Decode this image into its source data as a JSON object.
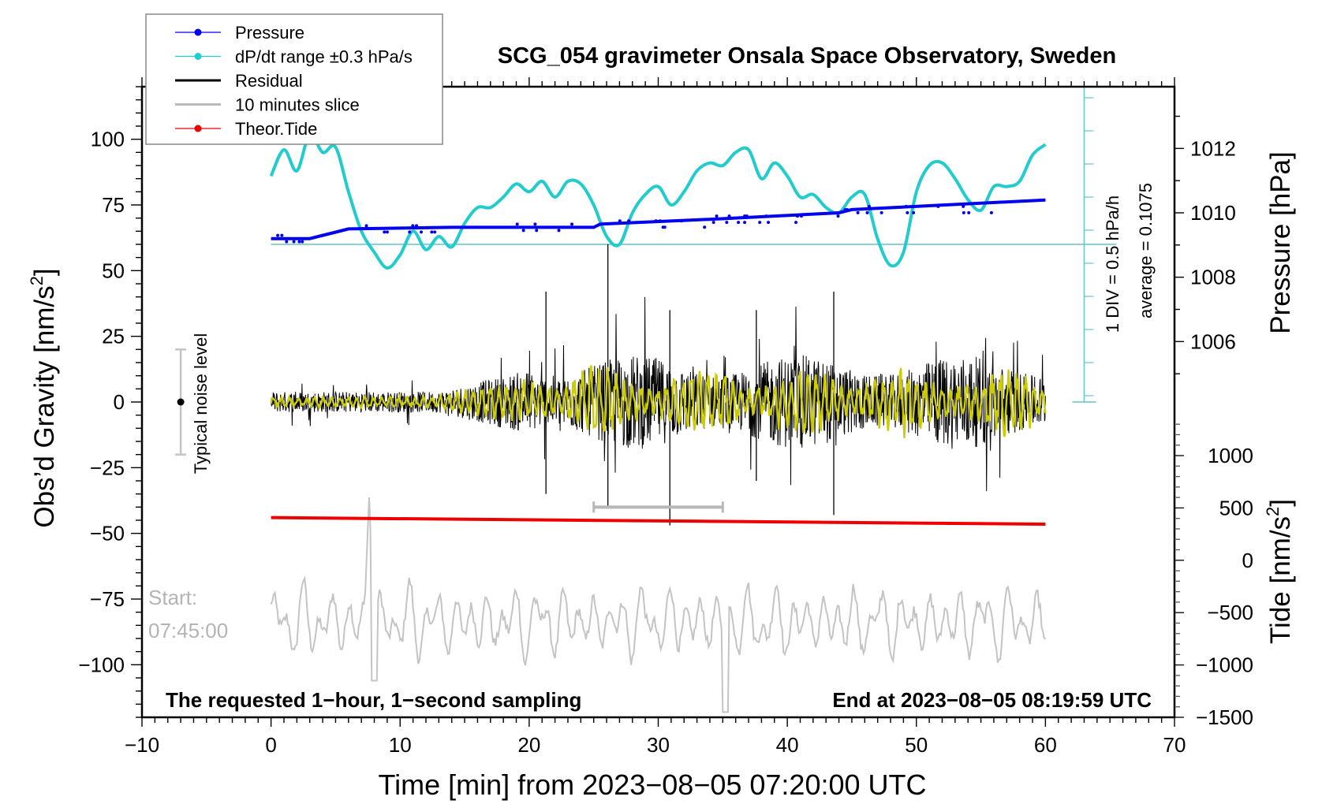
{
  "chart_data": {
    "type": "line",
    "title": "SCG_054 gravimeter Onsala Space Observatory, Sweden",
    "xlabel": "Time [min] from 2023−08−05 07:20:00 UTC",
    "ylabel_left": "Obs’d Gravity [nm/s²]",
    "ylabel_left_main": "Obs’d Gravity [nm/s",
    "ylabel_left_sup": "2",
    "ylabel_left_end": "]",
    "ylabel_right_top": "Pressure [hPa]",
    "ylabel_right_bottom_main": "Tide [nm/s",
    "ylabel_right_bottom_sup": "2",
    "ylabel_right_bottom_end": "]",
    "xlim": [
      -10,
      70
    ],
    "ylim_left": [
      -120,
      120
    ],
    "xticks": [
      "−10",
      "0",
      "10",
      "20",
      "30",
      "40",
      "50",
      "60",
      "70"
    ],
    "xtick_values": [
      -10,
      0,
      10,
      20,
      30,
      40,
      50,
      60,
      70
    ],
    "yticks_left": [
      "100",
      "75",
      "50",
      "25",
      "0",
      "−25",
      "−50",
      "−75",
      "−100"
    ],
    "ytick_values_left": [
      100,
      75,
      50,
      25,
      0,
      -25,
      -50,
      -75,
      -100
    ],
    "yticks_pressure": [
      "1012",
      "1010",
      "1008",
      "1006"
    ],
    "ytick_values_pressure": [
      1012,
      1010,
      1008,
      1006
    ],
    "yticks_tide": [
      "1000",
      "500",
      "0",
      "−500",
      "−1000",
      "−1500"
    ],
    "ytick_values_tide": [
      1000,
      500,
      0,
      -500,
      -1000,
      -1500
    ],
    "legend": {
      "placement": "top-left",
      "entries": [
        {
          "label": "Pressure",
          "color": "#0000ee",
          "marker": true
        },
        {
          "label": "dP/dt range ±0.3 hPa/s",
          "color": "#22cccc",
          "marker": true
        },
        {
          "label": "Residual",
          "color": "#000000",
          "marker": false
        },
        {
          "label": "10 minutes slice",
          "color": "#bbbbbb",
          "marker": false
        },
        {
          "label": "Theor.Tide",
          "color": "#ee0000",
          "marker": true
        }
      ]
    },
    "annotations": {
      "div_label": "1 DIV = 0.5 hPa/h",
      "average_label": "average = 0.1075",
      "noise_label": "Typical noise level",
      "start_label_1": "Start:",
      "start_label_2": "07:45:00",
      "bottom_left_note": "The requested 1−hour, 1−second sampling",
      "bottom_right_note": "End at 2023−08−05 08:19:59 UTC"
    },
    "noise_bar": {
      "x": -7,
      "center": 0,
      "low": -20,
      "high": 20
    },
    "slice_marker": {
      "x_start": 25,
      "x_end": 35,
      "y": -40
    },
    "pressure_series": {
      "name": "Pressure",
      "color": "#0000ee",
      "x": [
        0,
        3,
        5.5,
        6,
        14,
        25,
        25.5,
        34,
        44,
        45,
        60
      ],
      "hpa": [
        1009.2,
        1009.2,
        1009.45,
        1009.5,
        1009.55,
        1009.55,
        1009.65,
        1009.8,
        1010.0,
        1010.1,
        1010.4
      ]
    },
    "dpdt_series": {
      "name": "dP/dt",
      "color": "#22cccc",
      "x": [
        0,
        1,
        2,
        3,
        4,
        5,
        6,
        7,
        8,
        9,
        10,
        11,
        12,
        13,
        14,
        15,
        16,
        17,
        18,
        19,
        20,
        21,
        22,
        23,
        24,
        25,
        26,
        27,
        28,
        29,
        30,
        31,
        32,
        33,
        34,
        35,
        36,
        37,
        38,
        39,
        40,
        41,
        42,
        43,
        44,
        45,
        46,
        47,
        48,
        49,
        50,
        51,
        52,
        53,
        54,
        55,
        56,
        57,
        58,
        59,
        60
      ],
      "y": [
        86,
        96,
        88,
        102,
        95,
        97,
        80,
        65,
        57,
        51,
        56,
        65,
        58,
        63,
        59,
        68,
        74,
        74,
        78,
        83,
        80,
        84,
        78,
        84,
        83,
        75,
        63,
        60,
        72,
        79,
        82,
        75,
        80,
        88,
        91,
        90,
        95,
        96,
        85,
        91,
        86,
        78,
        79,
        74,
        72,
        78,
        79,
        62,
        52,
        57,
        80,
        90,
        91,
        85,
        77,
        73,
        82,
        82,
        84,
        94,
        98
      ]
    },
    "tide_series": {
      "name": "Theor.Tide",
      "color": "#ee0000",
      "x": [
        0,
        60
      ],
      "y": [
        -44,
        -46.5
      ]
    },
    "residual_series": {
      "name": "Residual",
      "color": "#000000"
    },
    "residual_smooth_series": {
      "name": "Residual smoothed",
      "color": "#cccc00"
    },
    "slice_series": {
      "name": "10 minutes slice",
      "color": "#bbbbbb"
    },
    "reference_line_y": 60,
    "dpdt_scale_axis_x": 63
  }
}
